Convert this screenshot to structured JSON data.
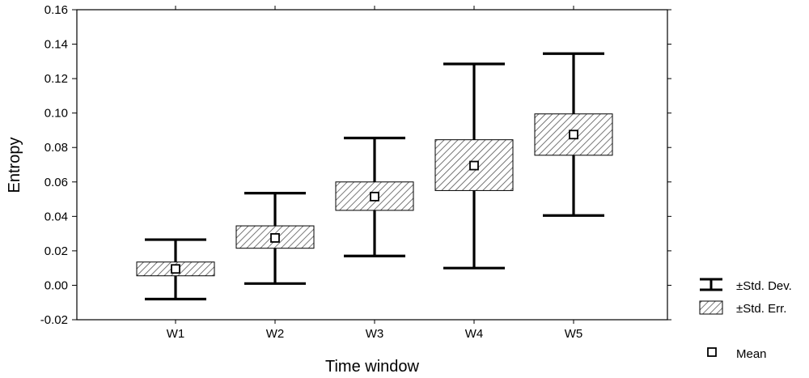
{
  "chart_data": {
    "type": "box",
    "xlabel": "Time window",
    "ylabel": "Entropy",
    "ylim": [
      -0.02,
      0.16
    ],
    "yticks": [
      -0.02,
      0.0,
      0.02,
      0.04,
      0.06,
      0.08,
      0.1,
      0.12,
      0.14,
      0.16
    ],
    "ytick_labels": [
      "-0.02",
      "0.00",
      "0.02",
      "0.04",
      "0.06",
      "0.08",
      "0.10",
      "0.12",
      "0.14",
      "0.16"
    ],
    "grid": false,
    "legend_position": "bottom-right",
    "legend": {
      "std_dev": "±Std. Dev.",
      "std_err": "±Std. Err.",
      "mean": "Mean"
    },
    "categories": [
      "W1",
      "W2",
      "W3",
      "W4",
      "W5"
    ],
    "mean": [
      0.0095,
      0.0275,
      0.0515,
      0.0695,
      0.0875
    ],
    "se_low": [
      0.0055,
      0.0215,
      0.0435,
      0.055,
      0.0755
    ],
    "se_high": [
      0.0135,
      0.0345,
      0.06,
      0.0845,
      0.0995
    ],
    "sd_low": [
      -0.008,
      0.001,
      0.017,
      0.01,
      0.0405
    ],
    "sd_high": [
      0.0265,
      0.0535,
      0.0855,
      0.1285,
      0.1345
    ],
    "colors": {
      "line": "#000000",
      "box_fill": "#ffffff",
      "hatch": "#555555",
      "mean_fill": "#ffffff"
    }
  }
}
